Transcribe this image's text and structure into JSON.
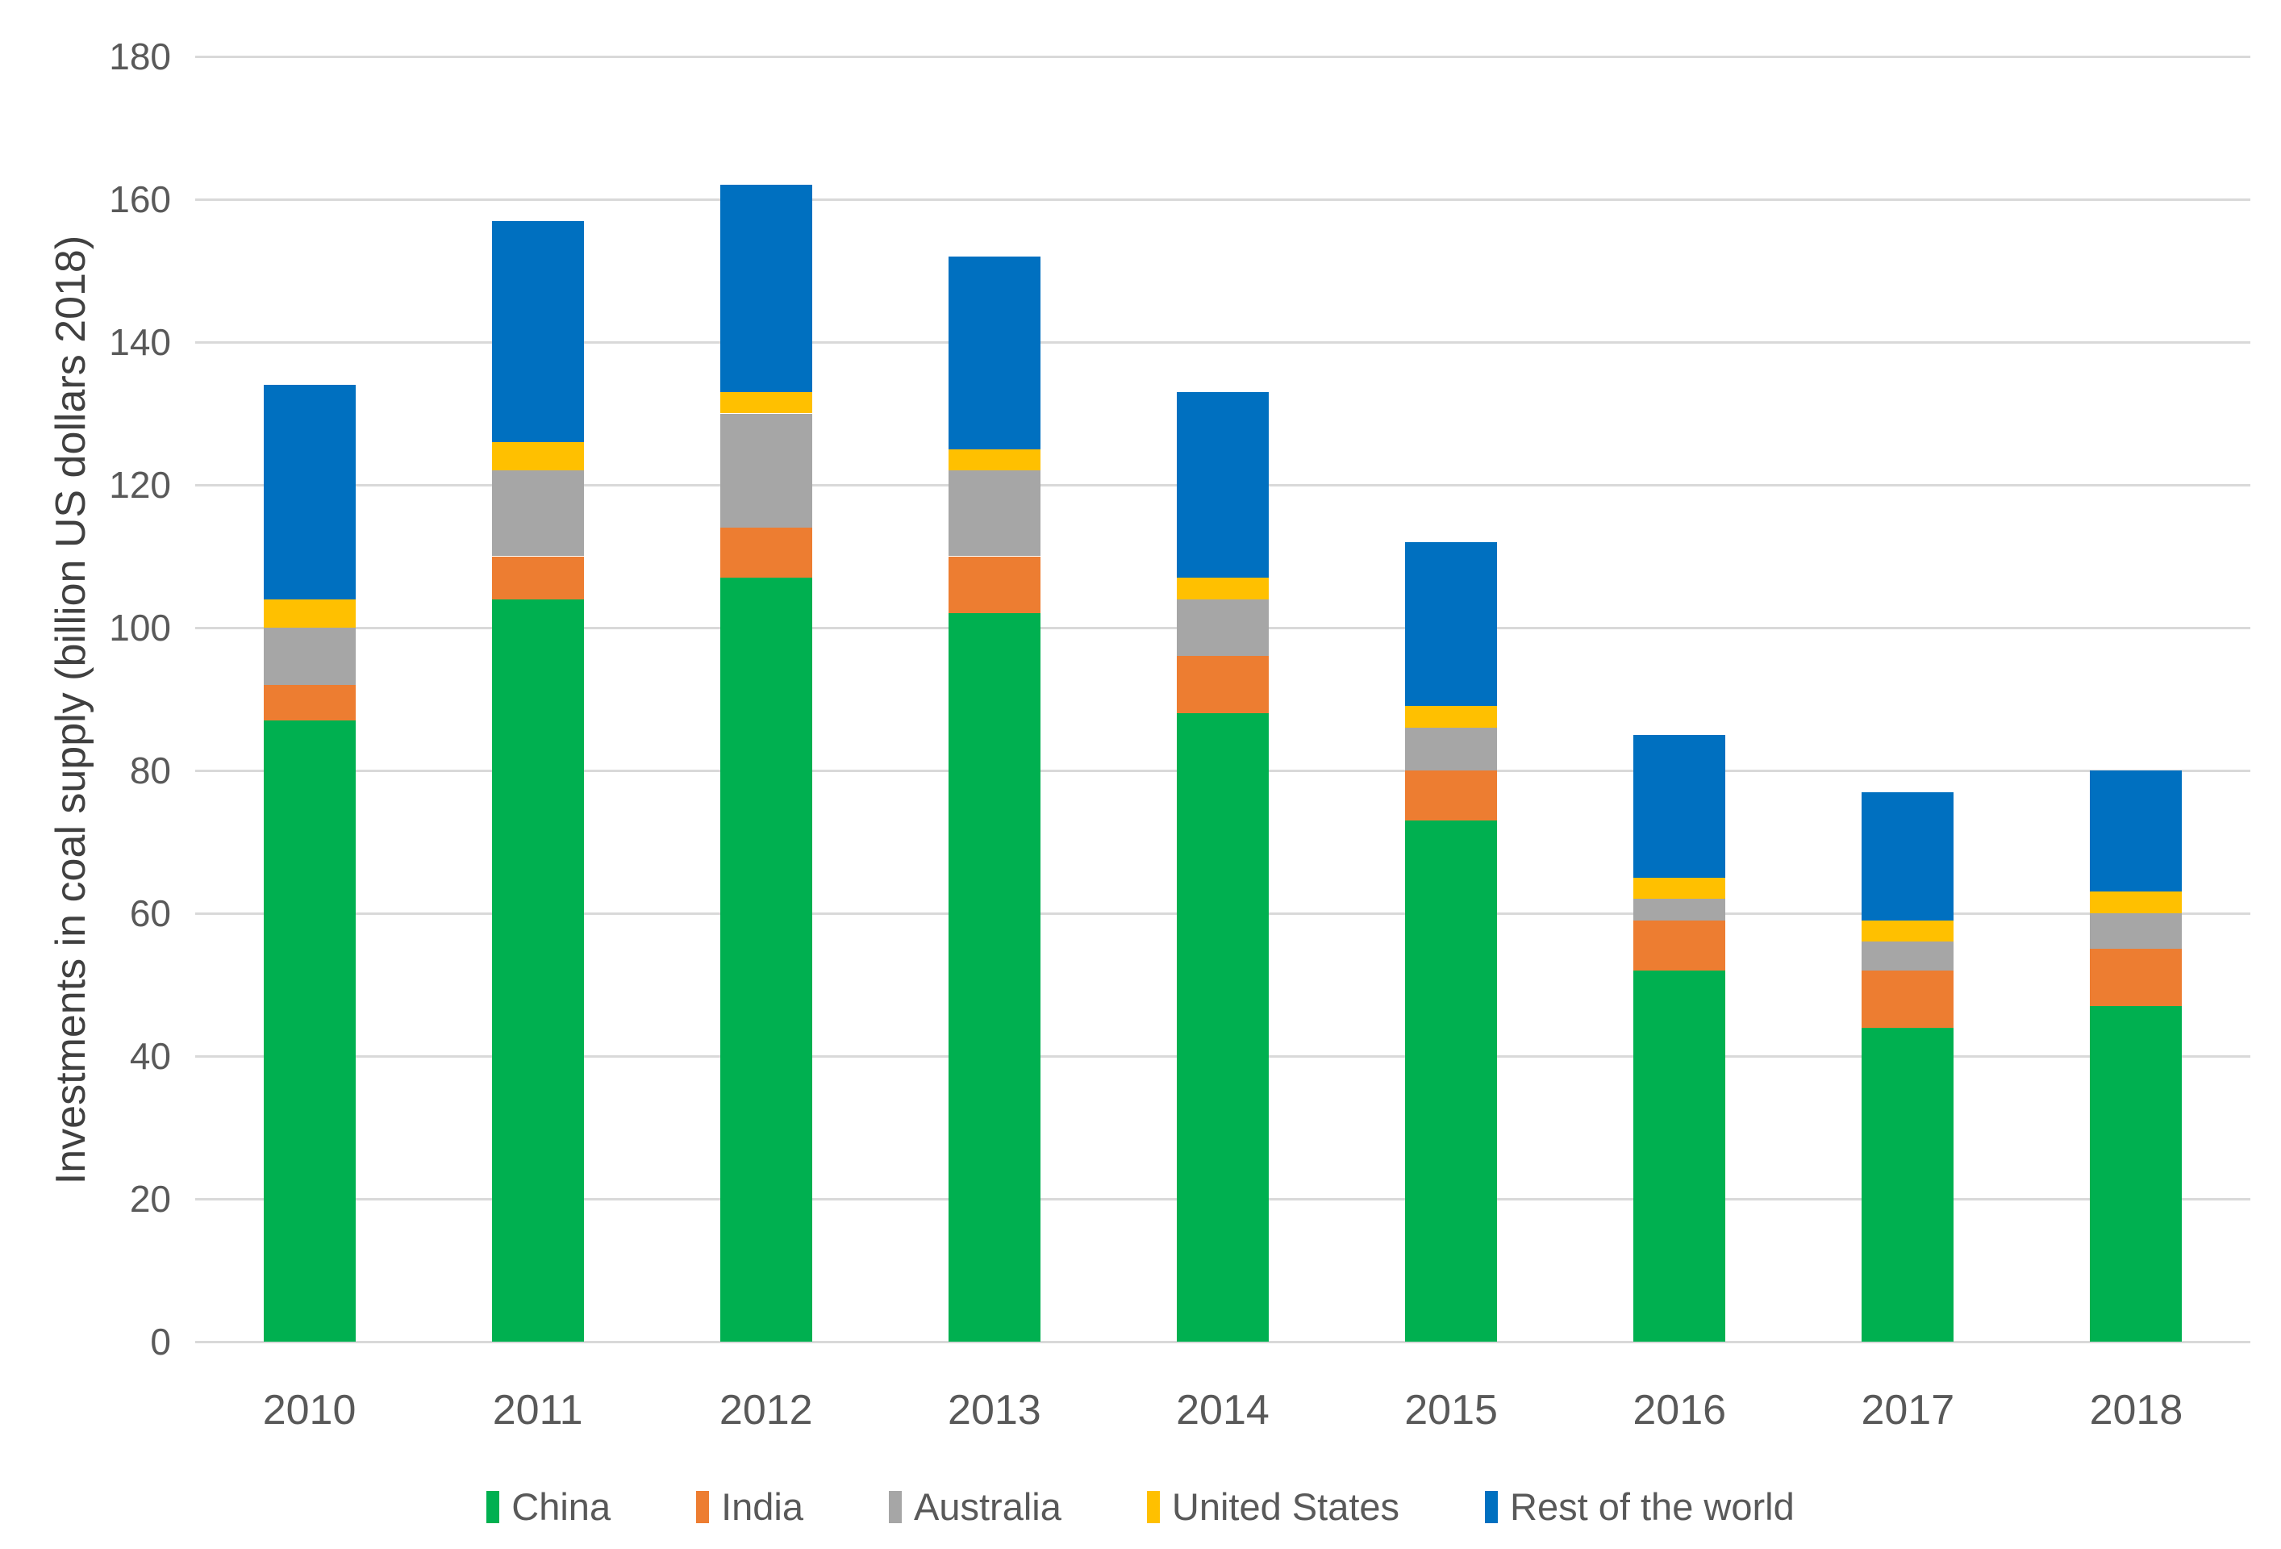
{
  "chart_data": {
    "type": "bar",
    "stacked": true,
    "title": "",
    "xlabel": "",
    "ylabel": "Investments in coal supply (billion US dollars 2018)",
    "categories": [
      "2010",
      "2011",
      "2012",
      "2013",
      "2014",
      "2015",
      "2016",
      "2017",
      "2018"
    ],
    "series": [
      {
        "name": "China",
        "color": "#00B050",
        "values": [
          87,
          104,
          107,
          102,
          88,
          73,
          52,
          44,
          47
        ]
      },
      {
        "name": "India",
        "color": "#ED7D31",
        "values": [
          5,
          6,
          7,
          8,
          8,
          7,
          7,
          8,
          8
        ]
      },
      {
        "name": "Australia",
        "color": "#A6A6A6",
        "values": [
          8,
          12,
          16,
          12,
          8,
          6,
          3,
          4,
          5
        ]
      },
      {
        "name": "United States",
        "color": "#FFC000",
        "values": [
          4,
          4,
          3,
          3,
          3,
          3,
          3,
          3,
          3
        ]
      },
      {
        "name": "Rest of the world",
        "color": "#0070C0",
        "values": [
          30,
          31,
          29,
          27,
          26,
          23,
          20,
          18,
          17
        ]
      }
    ],
    "totals": [
      134,
      157,
      162,
      152,
      133,
      112,
      85,
      77,
      80
    ],
    "ylim": [
      0,
      180
    ],
    "ytick_step": 20,
    "y_tick_labels": [
      "0",
      "20",
      "40",
      "60",
      "80",
      "100",
      "120",
      "140",
      "160",
      "180"
    ],
    "grid": true,
    "gridline_color": "#D9D9D9",
    "axis_text_color": "#595959",
    "legend_position": "bottom"
  }
}
